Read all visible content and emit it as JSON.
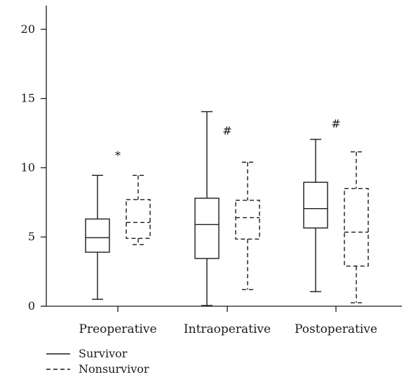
{
  "chart_data": {
    "type": "boxplot",
    "title": "",
    "xlabel": "",
    "ylabel": "",
    "ylim": [
      0,
      21.5
    ],
    "yticks": [
      0,
      5,
      10,
      15,
      20
    ],
    "grid": false,
    "legend_position": "bottom-left",
    "categories": [
      "Preoperative",
      "Intraoperative",
      "Postoperative"
    ],
    "series": [
      {
        "name": "Survivor",
        "line_style": "solid",
        "boxes": [
          {
            "min": 0.5,
            "q1": 3.9,
            "median": 4.95,
            "q3": 6.3,
            "max": 9.45
          },
          {
            "min": 0.05,
            "q1": 3.45,
            "median": 5.9,
            "q3": 7.8,
            "max": 14.05
          },
          {
            "min": 1.05,
            "q1": 5.65,
            "median": 7.05,
            "q3": 8.95,
            "max": 12.05
          }
        ]
      },
      {
        "name": "Nonsurvivor",
        "line_style": "dashed",
        "boxes": [
          {
            "min": 4.45,
            "q1": 4.9,
            "median": 6.05,
            "q3": 7.7,
            "max": 9.45
          },
          {
            "min": 1.2,
            "q1": 4.85,
            "median": 6.4,
            "q3": 7.65,
            "max": 10.4
          },
          {
            "min": 0.25,
            "q1": 2.9,
            "median": 5.35,
            "q3": 8.5,
            "max": 11.15
          }
        ]
      }
    ],
    "annotations": [
      {
        "text": "*",
        "category": "Preoperative",
        "y": 10.6
      },
      {
        "text": "#",
        "category": "Intraoperative",
        "y": 12.4
      },
      {
        "text": "#",
        "category": "Postoperative",
        "y": 12.9
      }
    ]
  }
}
